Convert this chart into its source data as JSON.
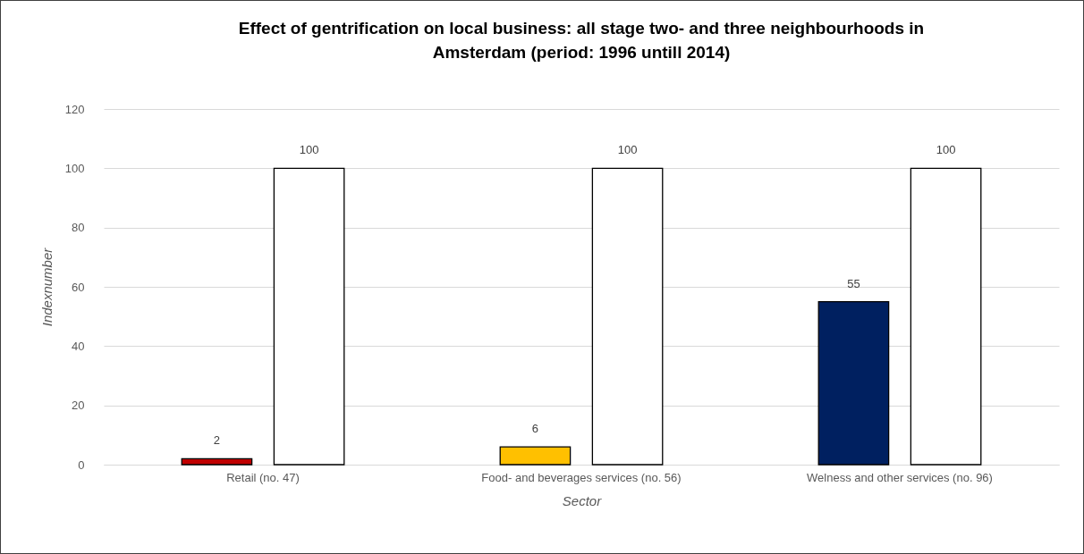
{
  "chart_data": {
    "type": "bar",
    "title": "Effect of gentrification on local business: all stage two- and three neighbourhoods in\nAmsterdam (period: 1996 untill 2014)",
    "xlabel": "Sector",
    "ylabel": "Indexnumber",
    "categories": [
      "Retail (no. 47)",
      "Food- and beverages services (no. 56)",
      "Welness and other services (no. 96)"
    ],
    "series": [
      {
        "colors": [
          "#c00000",
          "#ffc000",
          "#002060"
        ],
        "values": [
          2,
          6,
          55
        ]
      },
      {
        "color": "#ffffff",
        "values": [
          100,
          100,
          100
        ]
      }
    ],
    "ylim": [
      0,
      120
    ],
    "yticks": [
      0,
      20,
      40,
      60,
      80,
      100,
      120
    ],
    "grid": "y",
    "data_labels": true
  }
}
